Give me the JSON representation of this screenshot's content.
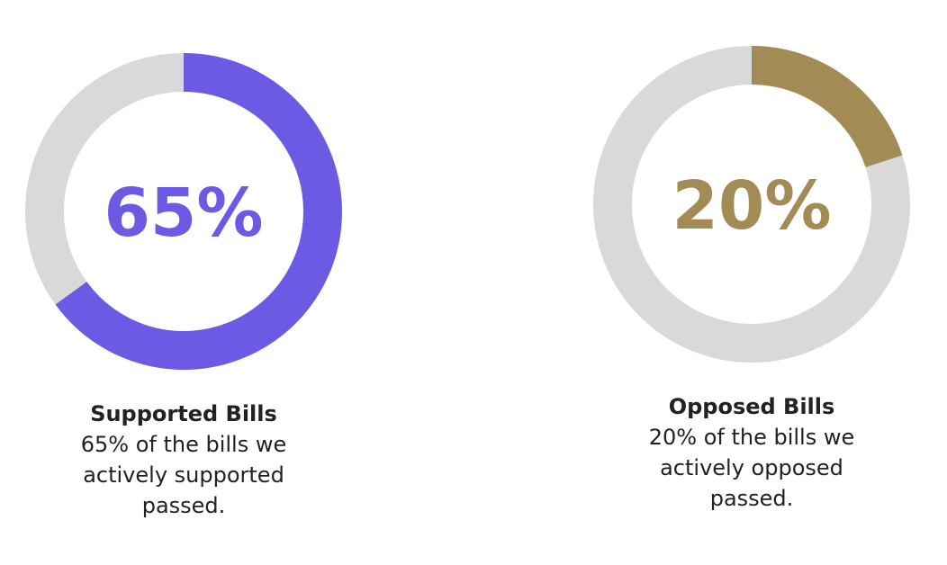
{
  "chart_data": [
    {
      "type": "pie",
      "donut": true,
      "value": 65,
      "max": 100,
      "center_label": "65%",
      "color": "#6C5AE4",
      "track_color": "#D9D9D9",
      "title": "Supported Bills",
      "description": [
        "65% of the bills we",
        "actively supported",
        "passed."
      ]
    },
    {
      "type": "pie",
      "donut": true,
      "value": 20,
      "max": 100,
      "center_label": "20%",
      "color": "#A38B55",
      "track_color": "#D9D9D9",
      "title": "Opposed Bills",
      "description": [
        "20% of the bills we",
        "actively opposed",
        "passed."
      ]
    }
  ]
}
